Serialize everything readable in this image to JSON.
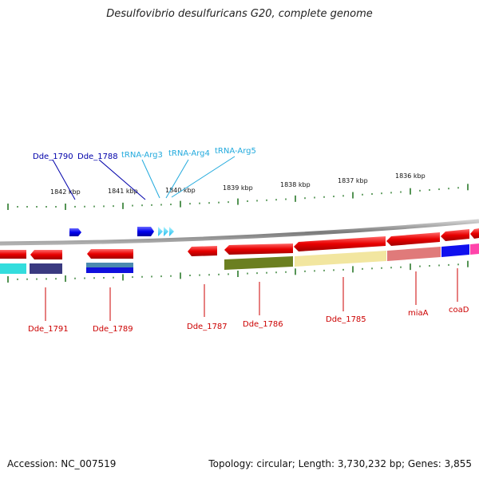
{
  "title": "Desulfovibrio desulfuricans G20, complete genome",
  "footer": {
    "accession": "Accession: NC_007519",
    "topology": "Topology: circular; Length: 3,730,232 bp; Genes: 3,855"
  },
  "colors": {
    "label_red": "#cc0000",
    "label_blue": "#0000aa",
    "label_cyan": "#22aadd",
    "tick": "#2a7a2a",
    "backbone": "#888888"
  },
  "scale_labels": [
    "1842 kbp",
    "1841 kbp",
    "1840 kbp",
    "1839 kbp",
    "1838 kbp",
    "1837 kbp",
    "1836 kbp"
  ],
  "top_labels": [
    "Dde_1790",
    "Dde_1788",
    "tRNA-Arg3",
    "tRNA-Arg4",
    "tRNA-Arg5"
  ],
  "bottom_labels": [
    "Dde_1791",
    "Dde_1789",
    "Dde_1787",
    "Dde_1786",
    "Dde_1785",
    "miaA",
    "coaD"
  ]
}
